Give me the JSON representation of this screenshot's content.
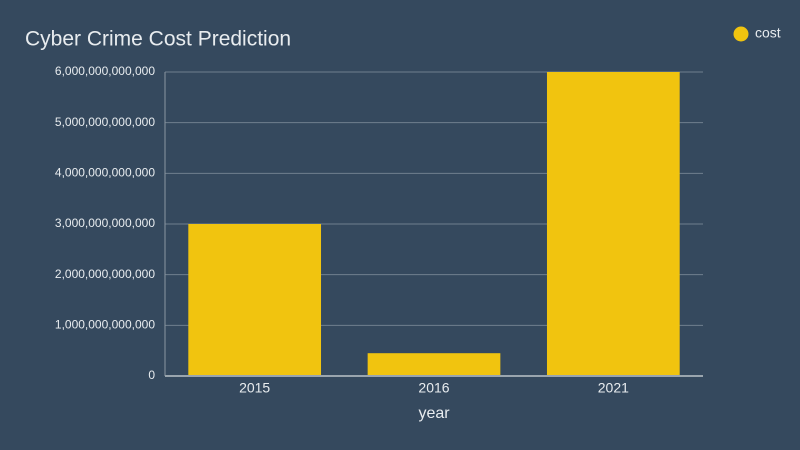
{
  "chart_data": {
    "type": "bar",
    "title": "Cyber Crime Cost Prediction",
    "x_label": "year",
    "categories": [
      "2015",
      "2016",
      "2021"
    ],
    "series": [
      {
        "name": "cost",
        "color": "#f1c40f",
        "values": [
          3000000000000,
          450000000000,
          6000000000000
        ]
      }
    ],
    "ylim": [
      0,
      6000000000000
    ],
    "yticks": [
      0,
      {
        "value": 1000000000000,
        "label": "1,000,000,000,000"
      },
      {
        "value": 2000000000000,
        "label": "2,000,000,000,000"
      },
      {
        "value": 3000000000000,
        "label": "3,000,000,000,000"
      },
      {
        "value": 4000000000000,
        "label": "4,000,000,000,000"
      },
      {
        "value": 5000000000000,
        "label": "5,000,000,000,000"
      },
      {
        "value": 6000000000000,
        "label": "6,000,000,000,000"
      }
    ],
    "grid": true,
    "legend": "top-right"
  }
}
